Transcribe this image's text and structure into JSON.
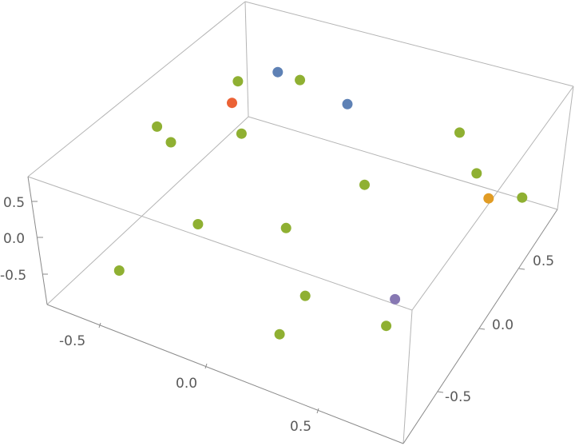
{
  "chart_data": {
    "type": "scatter3d",
    "title": "",
    "xlabel": "",
    "ylabel": "",
    "zlabel": "",
    "xlim": [
      -0.75,
      0.9
    ],
    "ylim": [
      -0.85,
      0.87
    ],
    "zlim": [
      -0.92,
      0.84
    ],
    "grid": false,
    "x_ticks": [
      "-0.5",
      "0.0",
      "0.5"
    ],
    "y_ticks": [
      "-0.5",
      "0.0",
      "0.5"
    ],
    "z_ticks": [
      "-0.5",
      "0.0",
      "0.5"
    ],
    "series": [
      {
        "color": "#5E81B5",
        "points": [
          [
            -0.44,
            0.66,
            0.3
          ],
          [
            -0.08,
            0.57,
            0.4
          ]
        ]
      },
      {
        "color": "#E19C24",
        "points": [
          [
            0.65,
            0.38,
            0.2
          ]
        ]
      },
      {
        "color": "#8FB032",
        "points": [
          [
            -0.42,
            0.8,
            0.0
          ],
          [
            -0.61,
            0.64,
            0.0
          ],
          [
            -0.7,
            0.14,
            0.0
          ],
          [
            -0.6,
            0.07,
            0.0
          ],
          [
            -0.41,
            0.3,
            0.0
          ],
          [
            0.27,
            0.84,
            0.0
          ],
          [
            0.47,
            0.61,
            0.0
          ],
          [
            0.16,
            0.26,
            0.0
          ],
          [
            0.7,
            0.56,
            0.0
          ],
          [
            -0.22,
            -0.41,
            0.0
          ],
          [
            0.07,
            -0.22,
            0.0
          ],
          [
            -0.43,
            -0.68,
            -0.5
          ],
          [
            0.27,
            -0.44,
            -0.4
          ],
          [
            0.25,
            -0.62,
            -0.7
          ],
          [
            0.58,
            -0.35,
            -0.6
          ]
        ]
      },
      {
        "color": "#EB6235",
        "points": [
          [
            -0.42,
            0.25,
            0.5
          ]
        ]
      },
      {
        "color": "#8778B3",
        "points": [
          [
            0.59,
            -0.29,
            -0.3
          ]
        ]
      }
    ]
  }
}
